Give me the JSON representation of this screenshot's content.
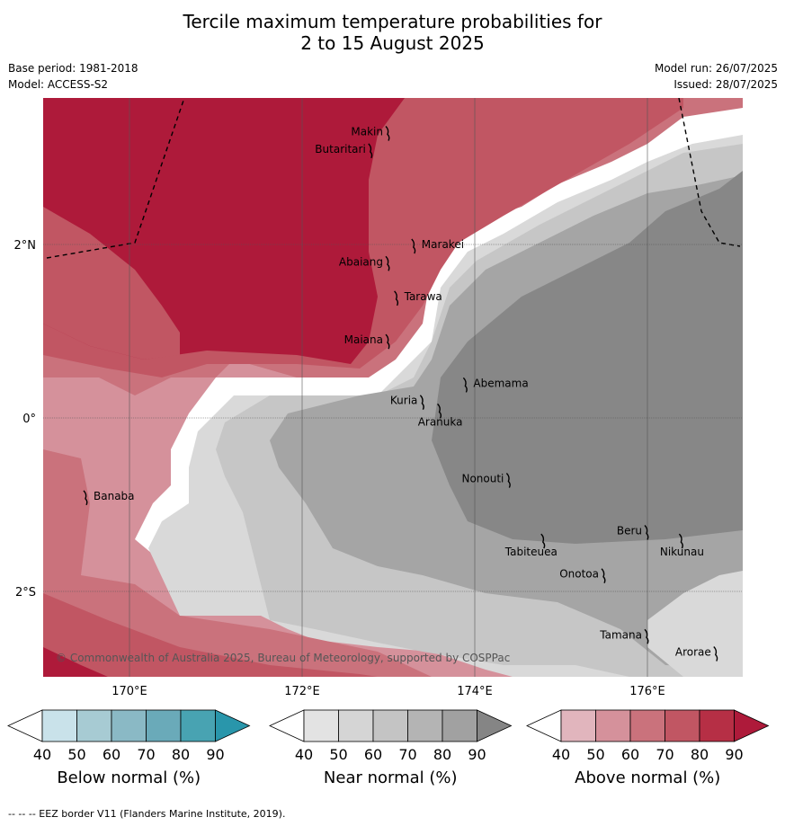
{
  "title_line1": "Tercile maximum temperature probabilities for",
  "title_line2": "2 to 15 August 2025",
  "base_period": "Base period: 1981-2018",
  "model": "Model: ACCESS-S2",
  "model_run": "Model run: 26/07/2025",
  "issued": "Issued: 28/07/2025",
  "copyright": "© Commonwealth of Australia 2025, Bureau of Meteorology, supported by COSPPac",
  "footnote": "--  --  -- EEZ border V11 (Flanders Marine Institute, 2019).",
  "axes": {
    "lat_ticks": [
      {
        "value": 2,
        "label": "2°N"
      },
      {
        "value": 0,
        "label": "0°"
      },
      {
        "value": -2,
        "label": "2°S"
      }
    ],
    "lon_ticks": [
      {
        "value": 170,
        "label": "170°E"
      },
      {
        "value": 172,
        "label": "172°E"
      },
      {
        "value": 174,
        "label": "174°E"
      },
      {
        "value": 176,
        "label": "176°E"
      }
    ]
  },
  "places": [
    {
      "name": "Makin",
      "lon": 173.0,
      "lat": 3.3
    },
    {
      "name": "Butaritari",
      "lon": 172.8,
      "lat": 3.1
    },
    {
      "name": "Marakei",
      "lon": 173.3,
      "lat": 2.0
    },
    {
      "name": "Abaiang",
      "lon": 173.0,
      "lat": 1.8
    },
    {
      "name": "Tarawa",
      "lon": 173.1,
      "lat": 1.4
    },
    {
      "name": "Maiana",
      "lon": 173.0,
      "lat": 0.9
    },
    {
      "name": "Abemama",
      "lon": 173.9,
      "lat": 0.4
    },
    {
      "name": "Kuria",
      "lon": 173.4,
      "lat": 0.2
    },
    {
      "name": "Aranuka",
      "lon": 173.6,
      "lat": 0.1
    },
    {
      "name": "Banaba",
      "lon": 169.5,
      "lat": -0.9
    },
    {
      "name": "Nonouti",
      "lon": 174.4,
      "lat": -0.7
    },
    {
      "name": "Tabiteuea",
      "lon": 174.8,
      "lat": -1.4
    },
    {
      "name": "Beru",
      "lon": 176.0,
      "lat": -1.3
    },
    {
      "name": "Nikunau",
      "lon": 176.4,
      "lat": -1.4
    },
    {
      "name": "Onotoa",
      "lon": 175.5,
      "lat": -1.8
    },
    {
      "name": "Tamana",
      "lon": 176.0,
      "lat": -2.5
    },
    {
      "name": "Arorae",
      "lon": 176.8,
      "lat": -2.7
    }
  ],
  "colorbars": [
    {
      "label": "Below normal (%)",
      "ticks": [
        "40",
        "50",
        "60",
        "70",
        "80",
        "90"
      ],
      "colors": [
        "#ffffff",
        "#c9e2ea",
        "#a7cbd3",
        "#8ab9c5",
        "#6aaab9",
        "#48a3b2",
        "#2996ab"
      ]
    },
    {
      "label": "Near normal (%)",
      "ticks": [
        "40",
        "50",
        "60",
        "70",
        "80",
        "90"
      ],
      "colors": [
        "#ffffff",
        "#e3e3e3",
        "#d5d5d5",
        "#c4c4c4",
        "#b4b4b4",
        "#a1a1a1",
        "#858585"
      ]
    },
    {
      "label": "Above normal (%)",
      "ticks": [
        "40",
        "50",
        "60",
        "70",
        "80",
        "90"
      ],
      "colors": [
        "#ffffff",
        "#e1b5bd",
        "#d5919b",
        "#ca727c",
        "#c15663",
        "#b62f45",
        "#ae1a3a"
      ]
    }
  ]
}
